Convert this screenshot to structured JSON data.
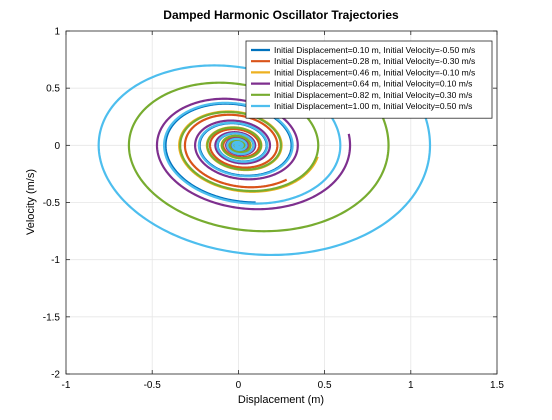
{
  "chart_data": {
    "type": "line",
    "title": "Damped Harmonic Oscillator Trajectories",
    "xlabel": "Displacement (m)",
    "ylabel": "Velocity (m/s)",
    "xlim": [
      -1,
      1.5
    ],
    "ylim": [
      -2,
      1
    ],
    "xticks": [
      -1,
      -0.5,
      0,
      0.5,
      1,
      1.5
    ],
    "xtick_labels": [
      "-1",
      "-0.5",
      "0",
      "0.5",
      "1",
      "1.5"
    ],
    "yticks": [
      -2,
      -1.5,
      -1,
      -0.5,
      0,
      0.5,
      1
    ],
    "ytick_labels": [
      "-2",
      "-1.5",
      "-1",
      "-0.5",
      "0",
      "0.5",
      "1"
    ],
    "grid": true,
    "legend_position": "top-right",
    "series": [
      {
        "name": "Initial Displacement=0.10 m, Initial Velocity=-0.50 m/s",
        "color": "#0072BD",
        "x0": 0.1,
        "v0": -0.5
      },
      {
        "name": "Initial Displacement=0.28 m, Initial Velocity=-0.30 m/s",
        "color": "#D95319",
        "x0": 0.28,
        "v0": -0.3
      },
      {
        "name": "Initial Displacement=0.46 m, Initial Velocity=-0.10 m/s",
        "color": "#EDB120",
        "x0": 0.46,
        "v0": -0.1
      },
      {
        "name": "Initial Displacement=0.64 m, Initial Velocity=0.10 m/s",
        "color": "#7E2F8E",
        "x0": 0.64,
        "v0": 0.1
      },
      {
        "name": "Initial Displacement=0.82 m, Initial Velocity=0.30 m/s",
        "color": "#77AC30",
        "x0": 0.82,
        "v0": 0.3
      },
      {
        "name": "Initial Displacement=1.00 m, Initial Velocity=0.50 m/s",
        "color": "#4DBEEE",
        "x0": 1.0,
        "v0": 0.5
      }
    ]
  }
}
